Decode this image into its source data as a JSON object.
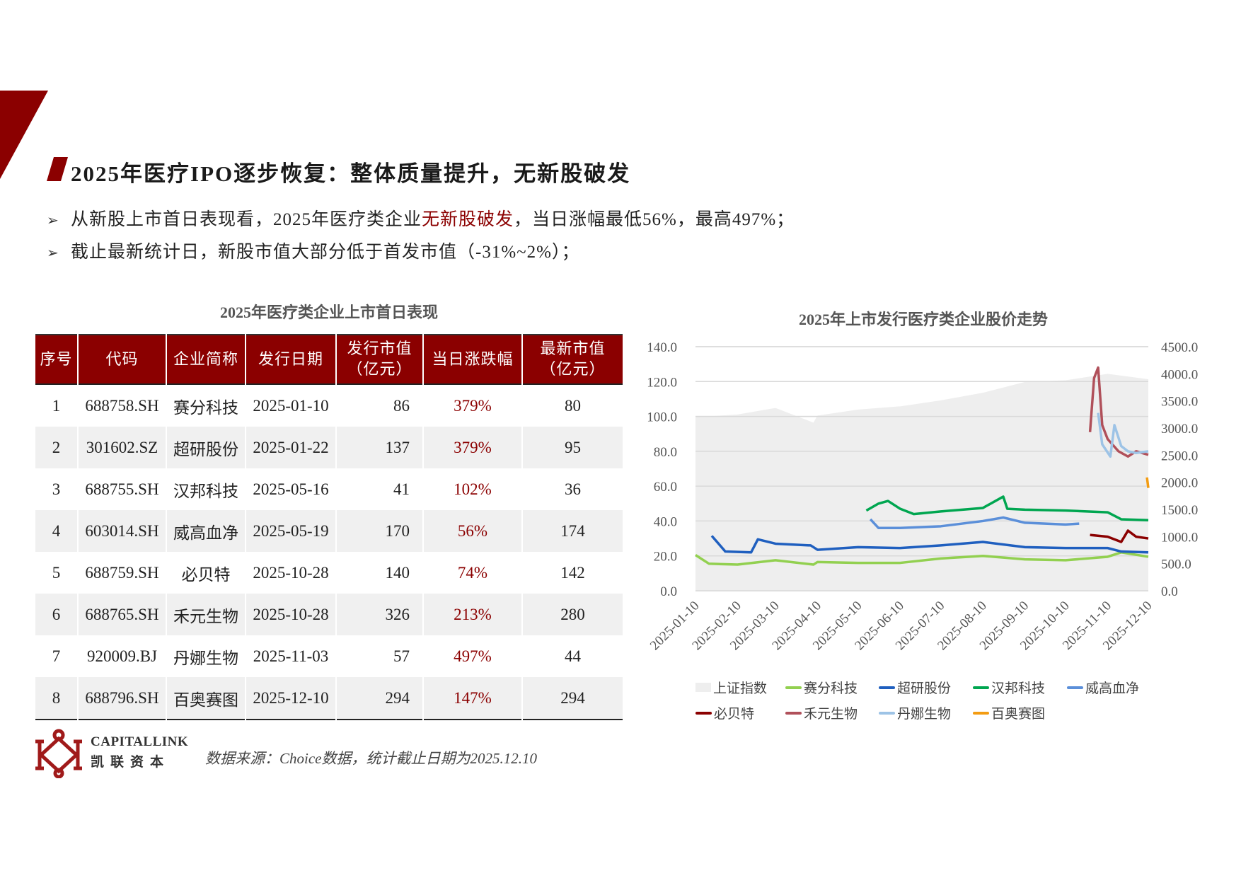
{
  "header": {
    "title": "2025年医疗IPO逐步恢复：整体质量提升，无新股破发",
    "accent_color": "#8b0000"
  },
  "bullets": [
    {
      "pre": "从新股上市首日表现看，2025年医疗类企业",
      "highlight": "无新股破发",
      "post": "，当日涨幅最低56%，最高497%；"
    },
    {
      "pre": "截止最新统计日，新股市值大部分低于首发市值（-31%~2%）；",
      "highlight": "",
      "post": ""
    }
  ],
  "table": {
    "title": "2025年医疗类企业上市首日表现",
    "headers": [
      "序号",
      "代码",
      "企业简称",
      "发行日期",
      "发行市值\n（亿元）",
      "当日涨跌幅",
      "最新市值\n（亿元）"
    ],
    "headers_display": {
      "h0": "序号",
      "h1": "代码",
      "h2": "企业简称",
      "h3": "发行日期",
      "h4a": "发行市值",
      "h4b": "（亿元）",
      "h5": "当日涨跌幅",
      "h6a": "最新市值",
      "h6b": "（亿元）"
    },
    "rows": [
      [
        "1",
        "688758.SH",
        "赛分科技",
        "2025-01-10",
        "86",
        "379%",
        "80"
      ],
      [
        "2",
        "301602.SZ",
        "超研股份",
        "2025-01-22",
        "137",
        "379%",
        "95"
      ],
      [
        "3",
        "688755.SH",
        "汉邦科技",
        "2025-05-16",
        "41",
        "102%",
        "36"
      ],
      [
        "4",
        "603014.SH",
        "威高血净",
        "2025-05-19",
        "170",
        "56%",
        "174"
      ],
      [
        "5",
        "688759.SH",
        "必贝特",
        "2025-10-28",
        "140",
        "74%",
        "142"
      ],
      [
        "6",
        "688765.SH",
        "禾元生物",
        "2025-10-28",
        "326",
        "213%",
        "280"
      ],
      [
        "7",
        "920009.BJ",
        "丹娜生物",
        "2025-11-03",
        "57",
        "497%",
        "44"
      ],
      [
        "8",
        "688796.SH",
        "百奥赛图",
        "2025-12-10",
        "294",
        "147%",
        "294"
      ]
    ]
  },
  "footer": {
    "logo_en": "CAPITALLINK",
    "logo_cn": "凯联资本",
    "source": "数据来源：Choice数据，统计截止日期为2025.12.10"
  },
  "chart_data": {
    "type": "line",
    "title": "2025年上市发行医疗类企业股价走势",
    "xlabel": "",
    "ylabel": "",
    "x_ticks": [
      "2025-01-10",
      "2025-02-10",
      "2025-03-10",
      "2025-04-10",
      "2025-05-10",
      "2025-06-10",
      "2025-07-10",
      "2025-08-10",
      "2025-09-10",
      "2025-10-10",
      "2025-11-10",
      "2025-12-10"
    ],
    "y_left": {
      "ticks": [
        "0.0",
        "20.0",
        "40.0",
        "60.0",
        "80.0",
        "100.0",
        "120.0",
        "140.0"
      ],
      "range": [
        0,
        140
      ]
    },
    "y_right": {
      "ticks": [
        "0.0",
        "500.0",
        "1000.0",
        "1500.0",
        "2000.0",
        "2500.0",
        "3000.0",
        "3500.0",
        "4000.0",
        "4500.0"
      ],
      "range": [
        0,
        4500
      ]
    },
    "grid": true,
    "legend_position": "bottom",
    "series": [
      {
        "name": "上证指数",
        "type": "area",
        "axis": "right",
        "color": "#eeeeee",
        "x": [
          "2025-01-10",
          "2025-02-10",
          "2025-03-10",
          "2025-04-07",
          "2025-04-10",
          "2025-05-10",
          "2025-06-10",
          "2025-07-10",
          "2025-08-10",
          "2025-09-10",
          "2025-10-10",
          "2025-11-10",
          "2025-12-10"
        ],
        "values": [
          3200,
          3250,
          3370,
          3100,
          3230,
          3340,
          3400,
          3510,
          3650,
          3850,
          3880,
          4000,
          3900
        ]
      },
      {
        "name": "赛分科技",
        "axis": "left",
        "color": "#92d050",
        "x": [
          "2025-01-10",
          "2025-01-20",
          "2025-02-10",
          "2025-03-10",
          "2025-04-07",
          "2025-04-10",
          "2025-05-10",
          "2025-06-10",
          "2025-07-10",
          "2025-08-10",
          "2025-09-10",
          "2025-10-10",
          "2025-11-10",
          "2025-11-20",
          "2025-12-10"
        ],
        "values": [
          20.5,
          15.5,
          15.0,
          17.5,
          15.0,
          16.5,
          16.0,
          16.0,
          18.5,
          20.0,
          18.0,
          17.5,
          19.5,
          22.0,
          19.5
        ]
      },
      {
        "name": "超研股份",
        "axis": "left",
        "color": "#1f5fbf",
        "x": [
          "2025-01-22",
          "2025-02-01",
          "2025-02-20",
          "2025-02-25",
          "2025-03-10",
          "2025-04-05",
          "2025-04-10",
          "2025-05-10",
          "2025-06-10",
          "2025-07-10",
          "2025-08-10",
          "2025-09-10",
          "2025-10-10",
          "2025-11-10",
          "2025-11-20",
          "2025-12-10"
        ],
        "values": [
          31.5,
          22.5,
          22.0,
          29.5,
          27.0,
          26.0,
          23.5,
          25.0,
          24.5,
          26.0,
          28.0,
          25.0,
          24.5,
          24.5,
          22.5,
          22.0
        ]
      },
      {
        "name": "汉邦科技",
        "axis": "left",
        "color": "#00a650",
        "x": [
          "2025-05-16",
          "2025-05-25",
          "2025-06-01",
          "2025-06-10",
          "2025-06-20",
          "2025-07-10",
          "2025-08-10",
          "2025-08-25",
          "2025-08-28",
          "2025-09-10",
          "2025-10-10",
          "2025-11-10",
          "2025-11-20",
          "2025-12-10"
        ],
        "values": [
          46.0,
          50.0,
          51.5,
          47.0,
          44.0,
          45.5,
          47.5,
          54.0,
          47.0,
          46.5,
          46.0,
          45.0,
          41.0,
          40.5
        ]
      },
      {
        "name": "威高血净",
        "axis": "left",
        "color": "#5b8fd9",
        "x": [
          "2025-05-19",
          "2025-05-25",
          "2025-06-10",
          "2025-07-10",
          "2025-08-10",
          "2025-08-25",
          "2025-09-10",
          "2025-10-10",
          "2025-10-20"
        ],
        "values": [
          41.0,
          36.0,
          36.0,
          37.0,
          40.0,
          42.0,
          39.0,
          38.0,
          38.5
        ]
      },
      {
        "name": "必贝特",
        "axis": "left",
        "color": "#8b0000",
        "x": [
          "2025-10-28",
          "2025-11-10",
          "2025-11-20",
          "2025-11-25",
          "2025-12-01",
          "2025-12-10"
        ],
        "values": [
          32.0,
          31.0,
          28.0,
          34.5,
          31.0,
          30.0
        ]
      },
      {
        "name": "禾元生物",
        "axis": "left",
        "color": "#b0505a",
        "x": [
          "2025-10-28",
          "2025-10-31",
          "2025-11-03",
          "2025-11-06",
          "2025-11-10",
          "2025-11-18",
          "2025-11-25",
          "2025-12-01",
          "2025-12-10"
        ],
        "values": [
          91.0,
          122.0,
          128.0,
          95.0,
          87.0,
          80.0,
          77.0,
          80.0,
          78.0
        ]
      },
      {
        "name": "丹娜生物",
        "axis": "left",
        "color": "#9dc3e6",
        "x": [
          "2025-11-03",
          "2025-11-06",
          "2025-11-12",
          "2025-11-15",
          "2025-11-20",
          "2025-11-25",
          "2025-12-01",
          "2025-12-10"
        ],
        "values": [
          102.0,
          84.0,
          77.0,
          95.0,
          83.0,
          80.0,
          79.0,
          80.0
        ]
      },
      {
        "name": "百奥赛图",
        "axis": "left",
        "color": "#f39c12",
        "x": [
          "2025-12-09",
          "2025-12-10"
        ],
        "values": [
          65.0,
          59.0
        ]
      }
    ]
  }
}
